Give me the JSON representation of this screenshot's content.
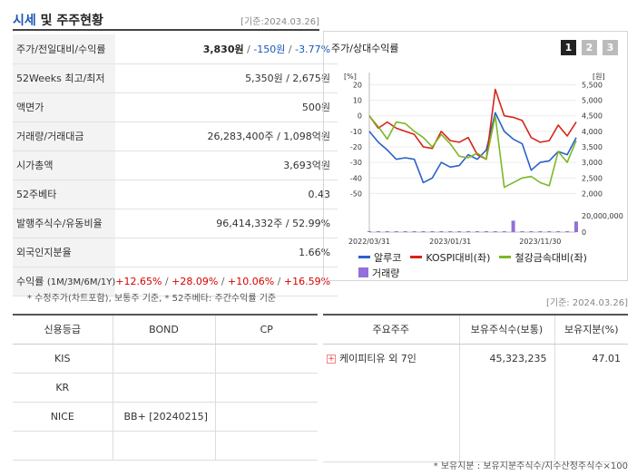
{
  "header": {
    "title_main": "시세",
    "title_rest": " 및 주주현황",
    "date": "[기준:2024.03.26]"
  },
  "info": {
    "price_label": "주가/전일대비/수익률",
    "price": "3,830원",
    "change": "-150원",
    "change_pct": "-3.77%",
    "week52_label": "52Weeks 최고/최저",
    "week52_value": "5,350원 / 2,675원",
    "face_label": "액면가",
    "face_value": "500원",
    "volume_label": "거래량/거래대금",
    "volume_value": "26,283,400주 / 1,098억원",
    "mcap_label": "시가총액",
    "mcap_value": "3,693억원",
    "beta_label": "52주베타",
    "beta_value": "0.43",
    "shares_label": "발행주식수/유동비율",
    "shares_value": "96,414,332주 / 52.99%",
    "foreign_label": "외국인지분율",
    "foreign_value": "1.66%",
    "return_label": "수익률",
    "return_period": "(1M/3M/6M/1Y)",
    "returns": [
      "+12.65%",
      "+28.09%",
      "+10.06%",
      "+16.59%"
    ]
  },
  "note1": "* 수정주가(차트포함), 보통주 기준, * 52주베타: 주간수익률 기준",
  "chart_panel": {
    "title": "주가/상대수익률",
    "tabs": [
      "1",
      "2",
      "3"
    ],
    "active_tab": 0
  },
  "chart_data": {
    "type": "line",
    "x": [
      "2022/03/31",
      "2022/05",
      "2022/06",
      "2022/07",
      "2022/08",
      "2022/09",
      "2022/10",
      "2022/11",
      "2022/12",
      "2023/01/31",
      "2023/02",
      "2023/03",
      "2023/04",
      "2023/05",
      "2023/06",
      "2023/07",
      "2023/08",
      "2023/09",
      "2023/10",
      "2023/11/30",
      "2023/12",
      "2024/01",
      "2024/02",
      "2024/03"
    ],
    "x_tick_labels": [
      "2022/03/31",
      "2023/01/31",
      "2023/11/30"
    ],
    "left_axis": {
      "unit": "[%]",
      "ticks": [
        20,
        10,
        0,
        -10,
        -20,
        -30,
        -40,
        -50
      ],
      "range": [
        -55,
        22
      ]
    },
    "right_axis": {
      "unit": "[원]",
      "ticks": [
        "5,500",
        "5,000",
        "4,500",
        "4,000",
        "3,500",
        "3,000",
        "2,500",
        "2,000"
      ],
      "range": [
        1850,
        5700
      ]
    },
    "volume_axis": {
      "ticks": [
        "20,000,000",
        "0"
      ]
    },
    "series": [
      {
        "name": "알루코",
        "color": "#2a62c9",
        "axis": "left",
        "values": [
          -10,
          -17,
          -22,
          -28,
          -27,
          -28,
          -43,
          -40,
          -30,
          -33,
          -32,
          -25,
          -28,
          -22,
          2,
          -10,
          -15,
          -18,
          -35,
          -30,
          -29,
          -23,
          -25,
          -14
        ]
      },
      {
        "name": "KOSPI대비(좌)",
        "color": "#d62418",
        "axis": "left",
        "values": [
          0,
          -8,
          -4,
          -8,
          -10,
          -12,
          -20,
          -21,
          -10,
          -16,
          -17,
          -14,
          -25,
          -28,
          17,
          0,
          -1,
          -3,
          -14,
          -17,
          -16,
          -6,
          -13,
          -4
        ]
      },
      {
        "name": "철강금속대비(좌)",
        "color": "#7cb824",
        "axis": "left",
        "values": [
          0,
          -7,
          -15,
          -4,
          -5,
          -10,
          -14,
          -20,
          -12,
          -18,
          -26,
          -27,
          -24,
          -28,
          0,
          -46,
          -43,
          -40,
          -39,
          -43,
          -45,
          -23,
          -30,
          -16
        ]
      }
    ],
    "volume": {
      "name": "거래량",
      "color": "#9370db",
      "values": [
        0.3,
        0.2,
        0.2,
        0.3,
        0.2,
        0.2,
        0.2,
        0.2,
        0.3,
        0.2,
        0.2,
        0.3,
        0.2,
        0.3,
        0.2,
        0.2,
        14,
        0.5,
        0.4,
        0.3,
        0.3,
        0.4,
        0.5,
        13
      ]
    }
  },
  "legend": {
    "items": [
      {
        "name": "알루코",
        "color": "#2a62c9",
        "kind": "line"
      },
      {
        "name": "KOSPI대비(좌)",
        "color": "#d62418",
        "kind": "line"
      },
      {
        "name": "철강금속대비(좌)",
        "color": "#7cb824",
        "kind": "line"
      },
      {
        "name": "거래량",
        "color": "#9370db",
        "kind": "box"
      }
    ]
  },
  "date2": "[기준: 2024.03.26]",
  "credit": {
    "headers": [
      "신용등급",
      "BOND",
      "CP"
    ],
    "rows": [
      [
        "KIS",
        "",
        ""
      ],
      [
        "KR",
        "",
        ""
      ],
      [
        "NICE",
        "BB+ [20240215]",
        ""
      ],
      [
        "",
        "",
        ""
      ]
    ]
  },
  "holders": {
    "headers": [
      "주요주주",
      "보유주식수(보통)",
      "보유지분(%)"
    ],
    "rows": [
      [
        "케이피티유 외 7인",
        "45,323,235",
        "47.01"
      ]
    ]
  },
  "note2": "* 보유지분 : 보유지분주식수/지수산정주식수×100"
}
